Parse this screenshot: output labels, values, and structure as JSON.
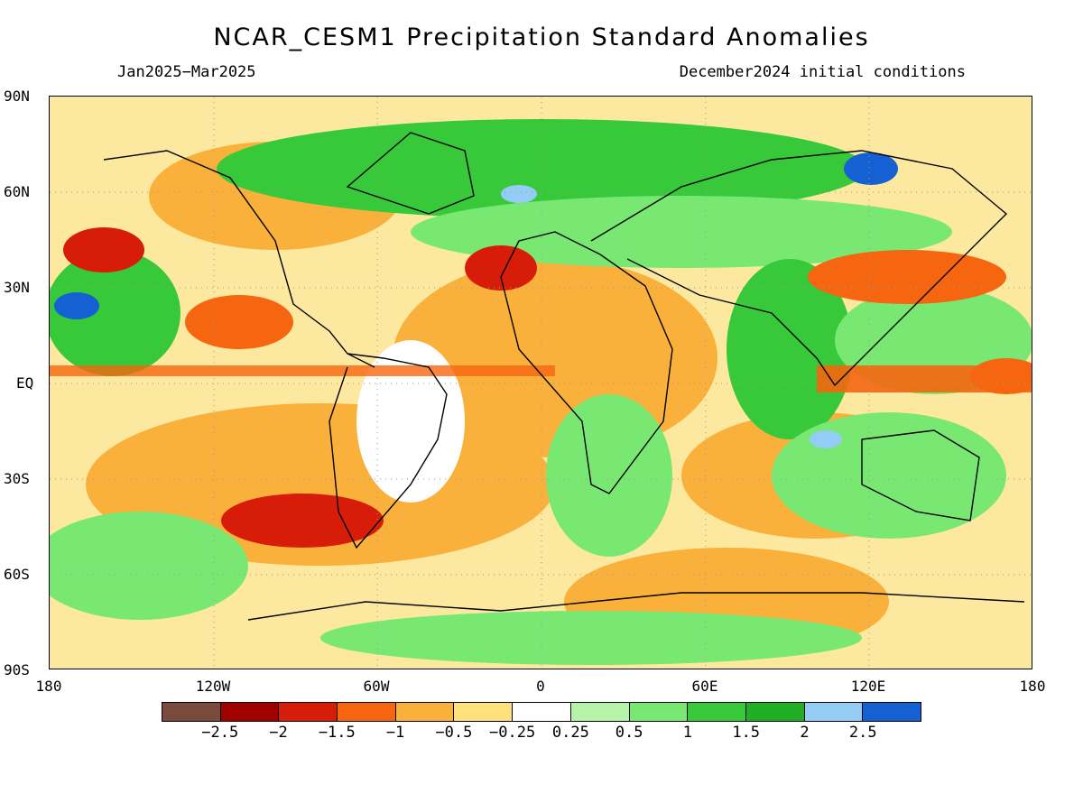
{
  "title": "NCAR_CESM1 Precipitation Standard Anomalies",
  "period": "Jan2025−Mar2025",
  "init": "December2024 initial conditions",
  "axes": {
    "lat_labels": [
      "90N",
      "60N",
      "30N",
      "EQ",
      "30S",
      "60S",
      "90S"
    ],
    "lon_labels": [
      "180",
      "120W",
      "60W",
      "0",
      "60E",
      "120E",
      "180"
    ]
  },
  "colorbar": {
    "colors": [
      "#7a4a3c",
      "#a00000",
      "#d81c0a",
      "#f6650f",
      "#f9b13c",
      "#fde27c",
      "#ffffff",
      "#b4f3a8",
      "#78e873",
      "#38c93a",
      "#1fae24",
      "#93ccf5",
      "#1560d2"
    ],
    "labels": [
      "−2.5",
      "−2",
      "−1.5",
      "−1",
      "−0.5",
      "−0.25",
      "0.25",
      "0.5",
      "1",
      "1.5",
      "2",
      "2.5"
    ]
  }
}
